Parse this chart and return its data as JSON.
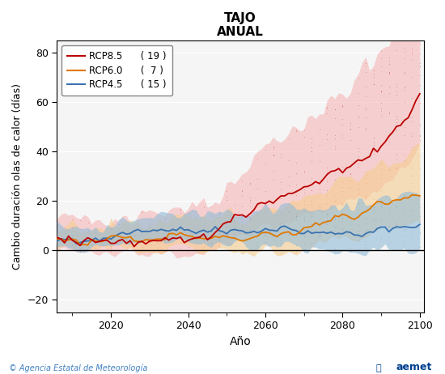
{
  "title": "TAJO",
  "subtitle": "ANUAL",
  "xlabel": "Año",
  "ylabel": "Cambio duración olas de calor (días)",
  "xlim": [
    2006,
    2101
  ],
  "ylim": [
    -25,
    85
  ],
  "yticks": [
    -20,
    0,
    20,
    40,
    60,
    80
  ],
  "xticks": [
    2020,
    2040,
    2060,
    2080,
    2100
  ],
  "legend_entries": [
    {
      "label": "RCP8.5",
      "count": "( 19 )",
      "color": "#bb0000"
    },
    {
      "label": "RCP6.0",
      "count": "(  7 )",
      "color": "#e07800"
    },
    {
      "label": "RCP4.5",
      "count": "( 15 )",
      "color": "#3a72b0"
    }
  ],
  "rcp85_color": "#bb0000",
  "rcp85_fill": "#f5b0b0",
  "rcp60_color": "#e07800",
  "rcp60_fill": "#f5cc90",
  "rcp45_color": "#3a72b0",
  "rcp45_fill": "#90bcd8",
  "hline_y": 0,
  "footer_left": "© Agencia Estatal de Meteorología",
  "footer_left_color": "#4080c0",
  "bg_color": "#f5f5f5",
  "seed": 123
}
